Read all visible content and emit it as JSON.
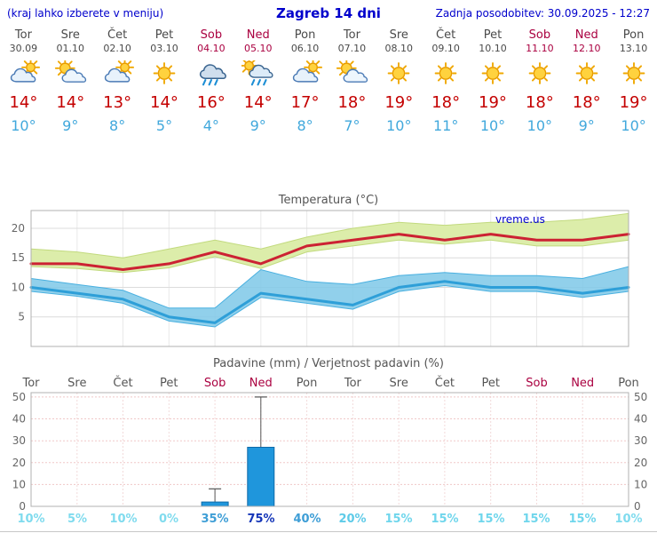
{
  "header": {
    "note": "(kraj lahko izberete v meniju)",
    "title": "Zagreb 14 dni",
    "updated": "Zadnja posodobitev: 30.09.2025 - 12:27",
    "color": "#0000cc"
  },
  "colors": {
    "day_text": "#4a4a4a",
    "weekend_text": "#aa0040",
    "tmax_text": "#c40000",
    "tmin_text": "#41a8dc"
  },
  "days": [
    {
      "name": "Tor",
      "date": "30.09",
      "weekend": false,
      "icon": "mostly-cloudy",
      "tmax": "14°",
      "tmin": "10°",
      "prob": "10%",
      "prob_color": "#7fdbee"
    },
    {
      "name": "Sre",
      "date": "01.10",
      "weekend": false,
      "icon": "partly-cloudy",
      "tmax": "14°",
      "tmin": "9°",
      "prob": "5%",
      "prob_color": "#7fdbee"
    },
    {
      "name": "Čet",
      "date": "02.10",
      "weekend": false,
      "icon": "mostly-cloudy",
      "tmax": "13°",
      "tmin": "8°",
      "prob": "10%",
      "prob_color": "#7fdbee"
    },
    {
      "name": "Pet",
      "date": "03.10",
      "weekend": false,
      "icon": "sunny",
      "tmax": "14°",
      "tmin": "5°",
      "prob": "0%",
      "prob_color": "#7fdbee"
    },
    {
      "name": "Sob",
      "date": "04.10",
      "weekend": true,
      "icon": "rain",
      "tmax": "16°",
      "tmin": "4°",
      "prob": "35%",
      "prob_color": "#3e9ed6"
    },
    {
      "name": "Ned",
      "date": "05.10",
      "weekend": true,
      "icon": "showers",
      "tmax": "14°",
      "tmin": "9°",
      "prob": "75%",
      "prob_color": "#1536b8"
    },
    {
      "name": "Pon",
      "date": "06.10",
      "weekend": false,
      "icon": "mostly-cloudy",
      "tmax": "17°",
      "tmin": "8°",
      "prob": "40%",
      "prob_color": "#3e9ed6"
    },
    {
      "name": "Tor",
      "date": "07.10",
      "weekend": false,
      "icon": "partly-cloudy",
      "tmax": "18°",
      "tmin": "7°",
      "prob": "20%",
      "prob_color": "#5ecbe8"
    },
    {
      "name": "Sre",
      "date": "08.10",
      "weekend": false,
      "icon": "sunny",
      "tmax": "19°",
      "tmin": "10°",
      "prob": "15%",
      "prob_color": "#6fd6ec"
    },
    {
      "name": "Čet",
      "date": "09.10",
      "weekend": false,
      "icon": "sunny",
      "tmax": "18°",
      "tmin": "11°",
      "prob": "15%",
      "prob_color": "#6fd6ec"
    },
    {
      "name": "Pet",
      "date": "10.10",
      "weekend": false,
      "icon": "sunny",
      "tmax": "19°",
      "tmin": "10°",
      "prob": "15%",
      "prob_color": "#6fd6ec"
    },
    {
      "name": "Sob",
      "date": "11.10",
      "weekend": true,
      "icon": "sunny",
      "tmax": "18°",
      "tmin": "10°",
      "prob": "15%",
      "prob_color": "#6fd6ec"
    },
    {
      "name": "Ned",
      "date": "12.10",
      "weekend": true,
      "icon": "sunny",
      "tmax": "18°",
      "tmin": "9°",
      "prob": "15%",
      "prob_color": "#6fd6ec"
    },
    {
      "name": "Pon",
      "date": "13.10",
      "weekend": false,
      "icon": "sunny",
      "tmax": "19°",
      "tmin": "10°",
      "prob": "10%",
      "prob_color": "#7fdbee"
    }
  ],
  "chart_data": [
    {
      "type": "line",
      "title": "Temperatura (°C)",
      "watermark": "vreme.us",
      "watermark_color": "#0000cc",
      "x_labels": [
        "Tor",
        "Sre",
        "Čet",
        "Pet",
        "Sob",
        "Ned",
        "Pon",
        "Tor",
        "Sre",
        "Čet",
        "Pet",
        "Sob",
        "Ned",
        "Pon"
      ],
      "ylim": [
        0,
        23
      ],
      "yticks": [
        5,
        10,
        15,
        20
      ],
      "grid": "on",
      "series": [
        {
          "name": "max-temperature",
          "color": "#cc2233",
          "values": [
            14,
            14,
            13,
            14,
            16,
            14,
            17,
            18,
            19,
            18,
            19,
            18,
            18,
            19
          ]
        },
        {
          "name": "min-temperature",
          "color": "#2e9fd8",
          "values": [
            10,
            9,
            8,
            5,
            4,
            9,
            8,
            7,
            10,
            11,
            10,
            10,
            9,
            10
          ]
        }
      ],
      "bands": [
        {
          "name": "max-range",
          "color": "#dcedaa",
          "edge": "#c2da7e",
          "opacity": 1,
          "upper": [
            16.5,
            16,
            15,
            16.5,
            18,
            16.5,
            18.5,
            20,
            21,
            20.5,
            21,
            21,
            21.5,
            22.5
          ],
          "lower": [
            13.5,
            13.2,
            12.5,
            13.3,
            15.2,
            13.2,
            16,
            17,
            18,
            17.3,
            18,
            17,
            17,
            18
          ]
        },
        {
          "name": "min-range",
          "color": "#7ec8e8",
          "edge": "#49b0e0",
          "opacity": 0.85,
          "upper": [
            11.5,
            10.5,
            9.5,
            6.5,
            6.5,
            13,
            11,
            10.5,
            12,
            12.5,
            12,
            12,
            11.5,
            13.5
          ],
          "lower": [
            9.3,
            8.5,
            7.3,
            4.3,
            3.3,
            8.3,
            7.3,
            6.3,
            9.3,
            10.3,
            9.3,
            9.3,
            8.3,
            9.3
          ]
        }
      ]
    },
    {
      "type": "bar",
      "title": "Padavine (mm) / Verjetnost padavin (%)",
      "x_labels": [
        "Tor",
        "Sre",
        "Čet",
        "Pet",
        "Sob",
        "Ned",
        "Pon",
        "Tor",
        "Sre",
        "Čet",
        "Pet",
        "Sob",
        "Ned",
        "Pon"
      ],
      "ylim": [
        0,
        52
      ],
      "yticks": [
        0,
        10,
        20,
        30,
        40,
        50
      ],
      "bars": [
        0,
        0,
        0,
        0,
        2,
        27,
        0,
        0,
        0,
        0,
        0,
        0,
        0,
        0
      ],
      "whisker_max": [
        0,
        0,
        0,
        0,
        8,
        50,
        0,
        0,
        0,
        0,
        0,
        0,
        0,
        0
      ],
      "bar_color": "#1f96dc",
      "bar_edge": "#0e6aa8",
      "probabilities": [
        "10%",
        "5%",
        "10%",
        "0%",
        "35%",
        "75%",
        "40%",
        "20%",
        "15%",
        "15%",
        "15%",
        "15%",
        "15%",
        "10%"
      ]
    }
  ]
}
